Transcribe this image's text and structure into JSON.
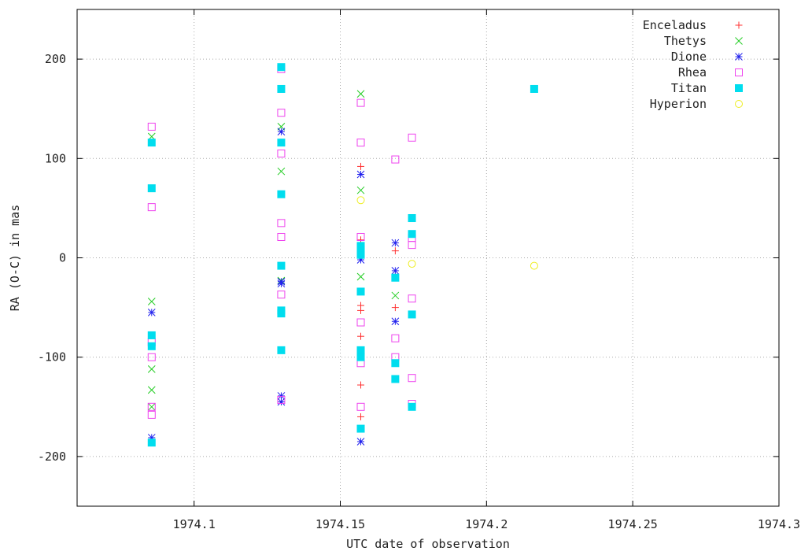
{
  "chart_data": {
    "type": "scatter",
    "title": "",
    "xlabel": "UTC date of observation",
    "ylabel": "RA (O-C) in mas",
    "xlim": [
      1974.06,
      1974.3
    ],
    "ylim": [
      -250,
      250
    ],
    "xticks": [
      1974.1,
      1974.15,
      1974.2,
      1974.25,
      1974.3
    ],
    "xtick_labels": [
      "1974.1",
      "1974.15",
      "1974.2",
      "1974.25",
      "1974.3"
    ],
    "yticks": [
      -200,
      -100,
      0,
      100,
      200
    ],
    "ytick_labels": [
      "-200",
      "-100",
      "0",
      "100",
      "200"
    ],
    "grid": true,
    "legend_position": "top-right",
    "series": [
      {
        "name": "Enceladus",
        "marker": "plus",
        "color": "#ff3030",
        "points": [
          [
            1974.157,
            92
          ],
          [
            1974.157,
            18
          ],
          [
            1974.157,
            -48
          ],
          [
            1974.157,
            -53
          ],
          [
            1974.157,
            -79
          ],
          [
            1974.157,
            -128
          ],
          [
            1974.157,
            -160
          ],
          [
            1974.1688,
            7
          ],
          [
            1974.1688,
            -50
          ]
        ]
      },
      {
        "name": "Thetys",
        "marker": "cross",
        "color": "#22cc22",
        "points": [
          [
            1974.0855,
            122
          ],
          [
            1974.0855,
            -44
          ],
          [
            1974.0855,
            -112
          ],
          [
            1974.0855,
            -133
          ],
          [
            1974.0855,
            -150
          ],
          [
            1974.1298,
            132
          ],
          [
            1974.1298,
            87
          ],
          [
            1974.1298,
            -23
          ],
          [
            1974.157,
            165
          ],
          [
            1974.157,
            68
          ],
          [
            1974.157,
            -19
          ],
          [
            1974.1688,
            -38
          ]
        ]
      },
      {
        "name": "Dione",
        "marker": "star",
        "color": "#2020ee",
        "points": [
          [
            1974.0855,
            -55
          ],
          [
            1974.0855,
            -181
          ],
          [
            1974.1298,
            127
          ],
          [
            1974.1298,
            -24
          ],
          [
            1974.1298,
            -26
          ],
          [
            1974.1298,
            -139
          ],
          [
            1974.1298,
            -145
          ],
          [
            1974.157,
            84
          ],
          [
            1974.157,
            -2
          ],
          [
            1974.157,
            -185
          ],
          [
            1974.1688,
            15
          ],
          [
            1974.1688,
            -13
          ],
          [
            1974.1688,
            -64
          ]
        ]
      },
      {
        "name": "Rhea",
        "marker": "open-square",
        "color": "#ee44ee",
        "points": [
          [
            1974.0855,
            132
          ],
          [
            1974.0855,
            51
          ],
          [
            1974.0855,
            -85
          ],
          [
            1974.0855,
            -100
          ],
          [
            1974.0855,
            -150
          ],
          [
            1974.0855,
            -158
          ],
          [
            1974.1298,
            190
          ],
          [
            1974.1298,
            146
          ],
          [
            1974.1298,
            105
          ],
          [
            1974.1298,
            35
          ],
          [
            1974.1298,
            21
          ],
          [
            1974.1298,
            -37
          ],
          [
            1974.1298,
            -143
          ],
          [
            1974.157,
            156
          ],
          [
            1974.157,
            116
          ],
          [
            1974.157,
            21
          ],
          [
            1974.157,
            -65
          ],
          [
            1974.157,
            -106
          ],
          [
            1974.157,
            -150
          ],
          [
            1974.1688,
            99
          ],
          [
            1974.1688,
            -81
          ],
          [
            1974.1688,
            -100
          ],
          [
            1974.1745,
            121
          ],
          [
            1974.1745,
            20
          ],
          [
            1974.1745,
            13
          ],
          [
            1974.1745,
            -41
          ],
          [
            1974.1745,
            -121
          ],
          [
            1974.1745,
            -147
          ]
        ]
      },
      {
        "name": "Titan",
        "marker": "filled-square",
        "color": "#00ddee",
        "points": [
          [
            1974.0855,
            116
          ],
          [
            1974.0855,
            70
          ],
          [
            1974.0855,
            -78
          ],
          [
            1974.0855,
            -89
          ],
          [
            1974.0855,
            -186
          ],
          [
            1974.1298,
            192
          ],
          [
            1974.1298,
            170
          ],
          [
            1974.1298,
            116
          ],
          [
            1974.1298,
            64
          ],
          [
            1974.1298,
            -8
          ],
          [
            1974.1298,
            -53
          ],
          [
            1974.1298,
            -56
          ],
          [
            1974.1298,
            -93
          ],
          [
            1974.157,
            12
          ],
          [
            1974.157,
            8
          ],
          [
            1974.157,
            3
          ],
          [
            1974.157,
            -34
          ],
          [
            1974.157,
            -93
          ],
          [
            1974.157,
            -100
          ],
          [
            1974.157,
            -172
          ],
          [
            1974.1688,
            -20
          ],
          [
            1974.1688,
            -106
          ],
          [
            1974.1688,
            -122
          ],
          [
            1974.1745,
            40
          ],
          [
            1974.1745,
            24
          ],
          [
            1974.1745,
            -57
          ],
          [
            1974.1745,
            -150
          ],
          [
            1974.2163,
            170
          ]
        ]
      },
      {
        "name": "Hyperion",
        "marker": "open-circle",
        "color": "#eeee22",
        "points": [
          [
            1974.157,
            58
          ],
          [
            1974.1745,
            -6
          ],
          [
            1974.2163,
            -8
          ]
        ]
      }
    ]
  }
}
